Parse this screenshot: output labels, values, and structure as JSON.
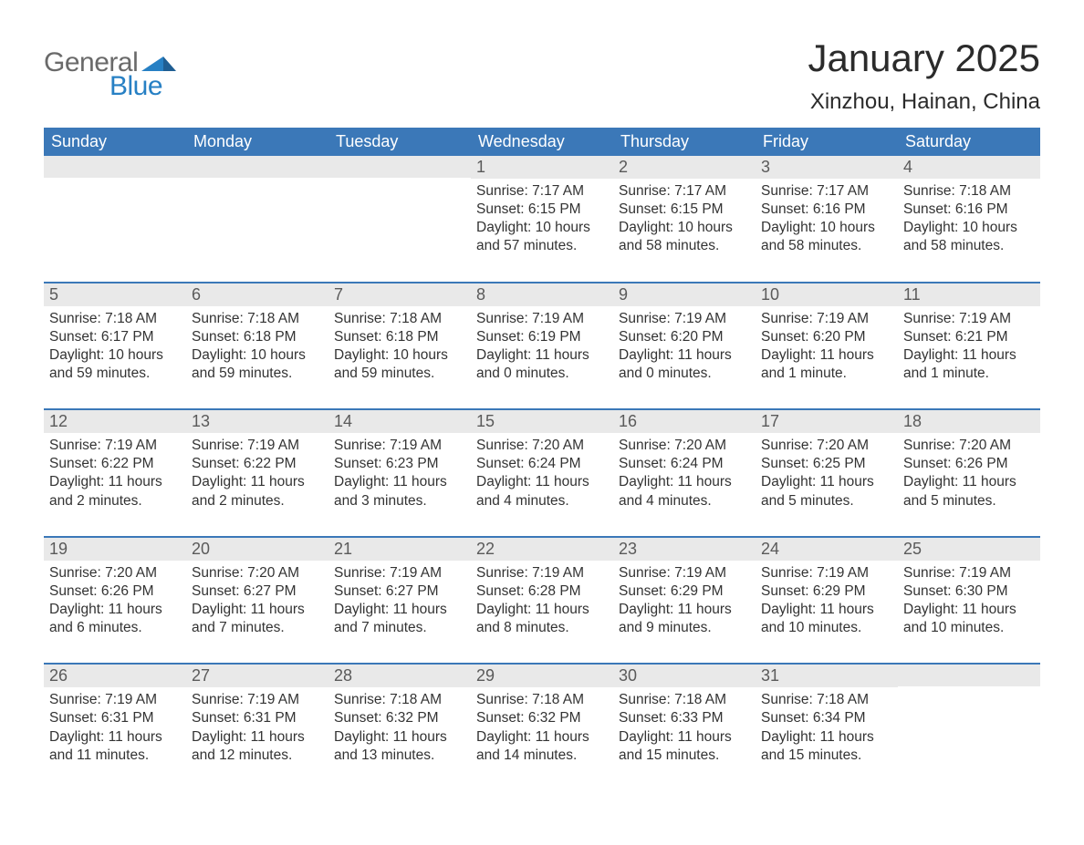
{
  "brand": {
    "word1": "General",
    "word2": "Blue"
  },
  "title": "January 2025",
  "location": "Xinzhou, Hainan, China",
  "colors": {
    "header_blue": "#3b78b8",
    "accent_blue": "#2780c4",
    "row_divider": "#3b78b8",
    "day_header_bg": "#e9e9e9",
    "text_dark": "#333333",
    "logo_gray": "#6a6a6a",
    "background": "#ffffff"
  },
  "typography": {
    "title_fontsize": 42,
    "location_fontsize": 24,
    "weekday_fontsize": 18,
    "daynum_fontsize": 18,
    "body_fontsize": 15.5,
    "font_family": "Arial"
  },
  "weekdays": [
    "Sunday",
    "Monday",
    "Tuesday",
    "Wednesday",
    "Thursday",
    "Friday",
    "Saturday"
  ],
  "weeks": [
    [
      {
        "n": "",
        "sr": "",
        "ss": "",
        "dl": ""
      },
      {
        "n": "",
        "sr": "",
        "ss": "",
        "dl": ""
      },
      {
        "n": "",
        "sr": "",
        "ss": "",
        "dl": ""
      },
      {
        "n": "1",
        "sr": "Sunrise: 7:17 AM",
        "ss": "Sunset: 6:15 PM",
        "dl": "Daylight: 10 hours and 57 minutes."
      },
      {
        "n": "2",
        "sr": "Sunrise: 7:17 AM",
        "ss": "Sunset: 6:15 PM",
        "dl": "Daylight: 10 hours and 58 minutes."
      },
      {
        "n": "3",
        "sr": "Sunrise: 7:17 AM",
        "ss": "Sunset: 6:16 PM",
        "dl": "Daylight: 10 hours and 58 minutes."
      },
      {
        "n": "4",
        "sr": "Sunrise: 7:18 AM",
        "ss": "Sunset: 6:16 PM",
        "dl": "Daylight: 10 hours and 58 minutes."
      }
    ],
    [
      {
        "n": "5",
        "sr": "Sunrise: 7:18 AM",
        "ss": "Sunset: 6:17 PM",
        "dl": "Daylight: 10 hours and 59 minutes."
      },
      {
        "n": "6",
        "sr": "Sunrise: 7:18 AM",
        "ss": "Sunset: 6:18 PM",
        "dl": "Daylight: 10 hours and 59 minutes."
      },
      {
        "n": "7",
        "sr": "Sunrise: 7:18 AM",
        "ss": "Sunset: 6:18 PM",
        "dl": "Daylight: 10 hours and 59 minutes."
      },
      {
        "n": "8",
        "sr": "Sunrise: 7:19 AM",
        "ss": "Sunset: 6:19 PM",
        "dl": "Daylight: 11 hours and 0 minutes."
      },
      {
        "n": "9",
        "sr": "Sunrise: 7:19 AM",
        "ss": "Sunset: 6:20 PM",
        "dl": "Daylight: 11 hours and 0 minutes."
      },
      {
        "n": "10",
        "sr": "Sunrise: 7:19 AM",
        "ss": "Sunset: 6:20 PM",
        "dl": "Daylight: 11 hours and 1 minute."
      },
      {
        "n": "11",
        "sr": "Sunrise: 7:19 AM",
        "ss": "Sunset: 6:21 PM",
        "dl": "Daylight: 11 hours and 1 minute."
      }
    ],
    [
      {
        "n": "12",
        "sr": "Sunrise: 7:19 AM",
        "ss": "Sunset: 6:22 PM",
        "dl": "Daylight: 11 hours and 2 minutes."
      },
      {
        "n": "13",
        "sr": "Sunrise: 7:19 AM",
        "ss": "Sunset: 6:22 PM",
        "dl": "Daylight: 11 hours and 2 minutes."
      },
      {
        "n": "14",
        "sr": "Sunrise: 7:19 AM",
        "ss": "Sunset: 6:23 PM",
        "dl": "Daylight: 11 hours and 3 minutes."
      },
      {
        "n": "15",
        "sr": "Sunrise: 7:20 AM",
        "ss": "Sunset: 6:24 PM",
        "dl": "Daylight: 11 hours and 4 minutes."
      },
      {
        "n": "16",
        "sr": "Sunrise: 7:20 AM",
        "ss": "Sunset: 6:24 PM",
        "dl": "Daylight: 11 hours and 4 minutes."
      },
      {
        "n": "17",
        "sr": "Sunrise: 7:20 AM",
        "ss": "Sunset: 6:25 PM",
        "dl": "Daylight: 11 hours and 5 minutes."
      },
      {
        "n": "18",
        "sr": "Sunrise: 7:20 AM",
        "ss": "Sunset: 6:26 PM",
        "dl": "Daylight: 11 hours and 5 minutes."
      }
    ],
    [
      {
        "n": "19",
        "sr": "Sunrise: 7:20 AM",
        "ss": "Sunset: 6:26 PM",
        "dl": "Daylight: 11 hours and 6 minutes."
      },
      {
        "n": "20",
        "sr": "Sunrise: 7:20 AM",
        "ss": "Sunset: 6:27 PM",
        "dl": "Daylight: 11 hours and 7 minutes."
      },
      {
        "n": "21",
        "sr": "Sunrise: 7:19 AM",
        "ss": "Sunset: 6:27 PM",
        "dl": "Daylight: 11 hours and 7 minutes."
      },
      {
        "n": "22",
        "sr": "Sunrise: 7:19 AM",
        "ss": "Sunset: 6:28 PM",
        "dl": "Daylight: 11 hours and 8 minutes."
      },
      {
        "n": "23",
        "sr": "Sunrise: 7:19 AM",
        "ss": "Sunset: 6:29 PM",
        "dl": "Daylight: 11 hours and 9 minutes."
      },
      {
        "n": "24",
        "sr": "Sunrise: 7:19 AM",
        "ss": "Sunset: 6:29 PM",
        "dl": "Daylight: 11 hours and 10 minutes."
      },
      {
        "n": "25",
        "sr": "Sunrise: 7:19 AM",
        "ss": "Sunset: 6:30 PM",
        "dl": "Daylight: 11 hours and 10 minutes."
      }
    ],
    [
      {
        "n": "26",
        "sr": "Sunrise: 7:19 AM",
        "ss": "Sunset: 6:31 PM",
        "dl": "Daylight: 11 hours and 11 minutes."
      },
      {
        "n": "27",
        "sr": "Sunrise: 7:19 AM",
        "ss": "Sunset: 6:31 PM",
        "dl": "Daylight: 11 hours and 12 minutes."
      },
      {
        "n": "28",
        "sr": "Sunrise: 7:18 AM",
        "ss": "Sunset: 6:32 PM",
        "dl": "Daylight: 11 hours and 13 minutes."
      },
      {
        "n": "29",
        "sr": "Sunrise: 7:18 AM",
        "ss": "Sunset: 6:32 PM",
        "dl": "Daylight: 11 hours and 14 minutes."
      },
      {
        "n": "30",
        "sr": "Sunrise: 7:18 AM",
        "ss": "Sunset: 6:33 PM",
        "dl": "Daylight: 11 hours and 15 minutes."
      },
      {
        "n": "31",
        "sr": "Sunrise: 7:18 AM",
        "ss": "Sunset: 6:34 PM",
        "dl": "Daylight: 11 hours and 15 minutes."
      },
      {
        "n": "",
        "sr": "",
        "ss": "",
        "dl": ""
      }
    ]
  ]
}
